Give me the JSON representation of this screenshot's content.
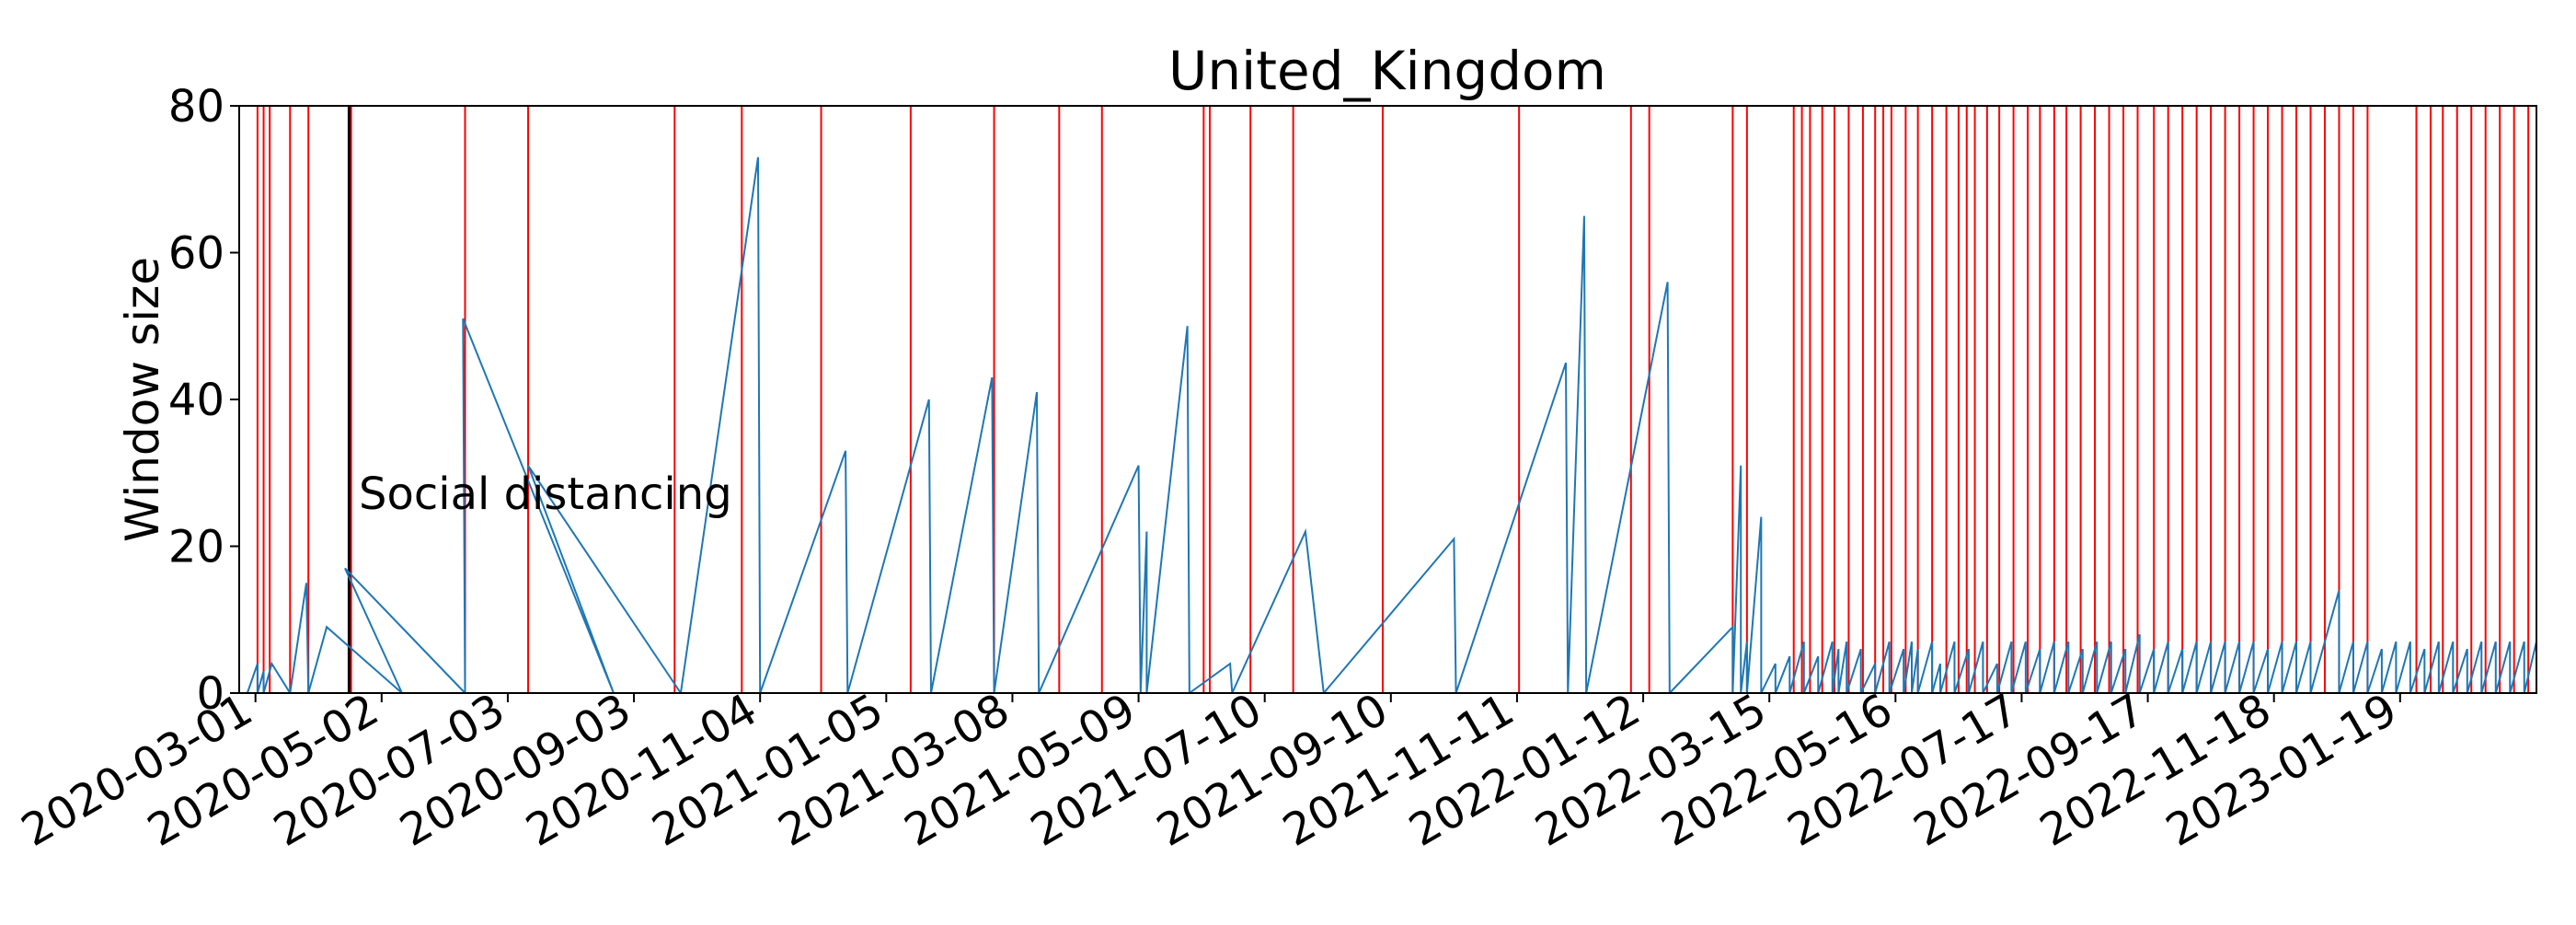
{
  "chart_data": {
    "type": "line",
    "title": "United_Kingdom",
    "xlabel": "",
    "ylabel": "Window size",
    "ylim": [
      0,
      80
    ],
    "yticks": [
      0,
      20,
      40,
      60,
      80
    ],
    "xlim": [
      "2020-02-22",
      "2023-03-27"
    ],
    "xticks": [
      "2020-03-01",
      "2020-05-02",
      "2020-07-03",
      "2020-09-03",
      "2020-11-04",
      "2021-01-05",
      "2021-03-08",
      "2021-05-09",
      "2021-07-10",
      "2021-09-10",
      "2021-11-11",
      "2022-01-12",
      "2022-03-15",
      "2022-05-16",
      "2022-07-17",
      "2022-09-17",
      "2022-11-18",
      "2023-01-19"
    ],
    "grid": false,
    "series": [
      {
        "color": "#1f77b4",
        "restart_dates": [
          "2020-02-26",
          "2020-03-02",
          "2020-03-05",
          "2020-03-18",
          "2020-03-27",
          "2020-05-12",
          "2020-06-12",
          "2020-08-24",
          "2020-09-26",
          "2020-11-04",
          "2020-12-17",
          "2021-01-27",
          "2021-02-27",
          "2021-03-21",
          "2021-05-10",
          "2021-05-13",
          "2021-06-03",
          "2021-06-24",
          "2021-08-08",
          "2021-10-12",
          "2021-12-06",
          "2021-12-15",
          "2022-01-25",
          "2022-02-25",
          "2022-03-01",
          "2022-03-04",
          "2022-03-11",
          "2022-03-18",
          "2022-03-25",
          "2022-04-01",
          "2022-04-08",
          "2022-04-15",
          "2022-04-18",
          "2022-04-22",
          "2022-04-29",
          "2022-05-06",
          "2022-05-13",
          "2022-05-20",
          "2022-05-24",
          "2022-05-27",
          "2022-06-03",
          "2022-06-07",
          "2022-06-14",
          "2022-06-21",
          "2022-06-28",
          "2022-07-05",
          "2022-07-12",
          "2022-07-19",
          "2022-07-26",
          "2022-08-02",
          "2022-08-09",
          "2022-08-16",
          "2022-08-23",
          "2022-08-30",
          "2022-09-06",
          "2022-09-13",
          "2022-09-20",
          "2022-09-27",
          "2022-10-04",
          "2022-10-11",
          "2022-10-18",
          "2022-10-25",
          "2022-11-01",
          "2022-11-08",
          "2022-11-15",
          "2022-11-22",
          "2022-11-29",
          "2022-12-06",
          "2022-12-20",
          "2022-12-27",
          "2023-01-03",
          "2023-01-10",
          "2023-01-17",
          "2023-01-24",
          "2023-01-31",
          "2023-02-07",
          "2023-02-14",
          "2023-02-21",
          "2023-02-28",
          "2023-03-07",
          "2023-03-14",
          "2023-03-21"
        ],
        "peak_dates": [
          "2020-03-02",
          "2020-03-05",
          "2020-03-09",
          "2020-03-26",
          "2020-04-05",
          "2020-04-14",
          "2020-06-11",
          "2020-07-13",
          "2020-11-03",
          "2020-12-16",
          "2021-01-26",
          "2021-02-26",
          "2021-03-20",
          "2021-05-09",
          "2021-05-13",
          "2021-06-02",
          "2021-06-23",
          "2021-07-30",
          "2021-10-11",
          "2021-12-05",
          "2021-12-14",
          "2022-01-24",
          "2022-02-25",
          "2022-03-01",
          "2022-03-04",
          "2022-03-11",
          "2022-03-18",
          "2022-03-25",
          "2022-04-01",
          "2022-04-08",
          "2022-04-15",
          "2022-04-18",
          "2022-04-22",
          "2022-04-29",
          "2022-05-06",
          "2022-05-13",
          "2022-05-20",
          "2022-05-24",
          "2022-05-27",
          "2022-06-03",
          "2022-06-07",
          "2022-06-14",
          "2022-06-21",
          "2022-06-28",
          "2022-07-05",
          "2022-07-12",
          "2022-07-19",
          "2022-07-26",
          "2022-08-02",
          "2022-08-09",
          "2022-08-16",
          "2022-08-23",
          "2022-08-30",
          "2022-09-06",
          "2022-09-13",
          "2022-09-20",
          "2022-09-27",
          "2022-10-04",
          "2022-10-11",
          "2022-10-18",
          "2022-10-25",
          "2022-11-01",
          "2022-11-08",
          "2022-11-15",
          "2022-11-22",
          "2022-11-29",
          "2022-12-06",
          "2022-12-20",
          "2022-12-27",
          "2023-01-03",
          "2023-01-10",
          "2023-01-17",
          "2023-01-24",
          "2023-01-31",
          "2023-02-07",
          "2023-02-14",
          "2023-02-21",
          "2023-02-28",
          "2023-03-07",
          "2023-03-14",
          "2023-03-21",
          "2023-03-27"
        ],
        "peak_values": [
          4,
          3,
          4,
          15,
          9,
          17,
          51,
          31,
          73,
          33,
          40,
          43,
          41,
          31,
          22,
          50,
          4,
          22,
          21,
          45,
          65,
          56,
          9,
          31,
          7,
          24,
          4,
          5,
          7,
          5,
          7,
          6,
          7,
          6,
          4,
          7,
          6,
          7,
          6,
          7,
          4,
          7,
          6,
          7,
          4,
          7,
          7,
          6,
          7,
          7,
          6,
          7,
          7,
          6,
          8,
          6,
          7,
          6,
          7,
          7,
          7,
          7,
          7,
          6,
          7,
          7,
          7,
          14,
          7,
          7,
          6,
          7,
          7,
          6,
          7,
          7,
          6,
          7,
          7,
          7,
          7,
          7
        ]
      }
    ],
    "change_points": {
      "color": "#ff0000",
      "dates": [
        "2020-03-02",
        "2020-03-05",
        "2020-03-08",
        "2020-03-18",
        "2020-03-27",
        "2020-04-17",
        "2020-06-12",
        "2020-07-13",
        "2020-09-23",
        "2020-10-26",
        "2020-12-04",
        "2021-01-17",
        "2021-02-27",
        "2021-03-31",
        "2021-04-21",
        "2021-06-10",
        "2021-06-13",
        "2021-07-03",
        "2021-07-24",
        "2021-09-06",
        "2021-11-12",
        "2022-01-06",
        "2022-01-15",
        "2022-02-25",
        "2022-03-04",
        "2022-03-27",
        "2022-03-31",
        "2022-04-04",
        "2022-04-10",
        "2022-04-16",
        "2022-04-23",
        "2022-04-30",
        "2022-05-06",
        "2022-05-10",
        "2022-05-14",
        "2022-05-21",
        "2022-05-27",
        "2022-06-03",
        "2022-06-10",
        "2022-06-16",
        "2022-06-20",
        "2022-06-24",
        "2022-06-30",
        "2022-07-06",
        "2022-07-13",
        "2022-07-20",
        "2022-07-26",
        "2022-08-02",
        "2022-08-08",
        "2022-08-15",
        "2022-08-22",
        "2022-08-29",
        "2022-09-05",
        "2022-09-12",
        "2022-09-20",
        "2022-09-27",
        "2022-10-04",
        "2022-10-11",
        "2022-10-18",
        "2022-10-25",
        "2022-11-01",
        "2022-11-08",
        "2022-11-15",
        "2022-11-22",
        "2022-11-29",
        "2022-12-06",
        "2022-12-13",
        "2022-12-20",
        "2022-12-27",
        "2023-01-03",
        "2023-01-27",
        "2023-02-03",
        "2023-02-09",
        "2023-02-16",
        "2023-02-23",
        "2023-03-02",
        "2023-03-09",
        "2023-03-16",
        "2023-03-23",
        "2023-03-27"
      ]
    },
    "annotation": {
      "date": "2020-04-16",
      "color": "#000000",
      "text": "Social distancing"
    }
  }
}
